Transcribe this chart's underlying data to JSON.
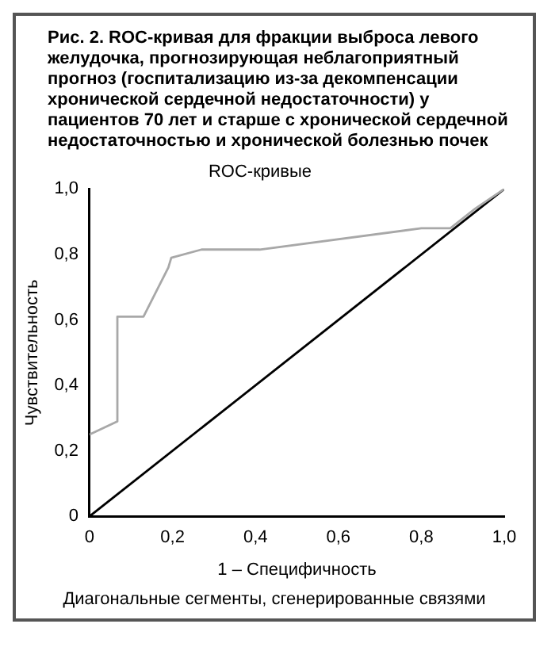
{
  "chart_data": {
    "type": "line",
    "title": "Рис. 2. ROC-кривая для фракции выброса левого желудочка, прогнозирующая неблагоприятный прогноз (госпитализацию из-за декомпенсации хронической сердечной недостаточности) у пациентов 70 лет и старше с хронической сердечной недостаточностью и хронической болезнью почек",
    "subtitle": "ROC-кривые",
    "xlabel": "1 – Специфичность",
    "ylabel": "Чувствительность",
    "annotations": [
      "Диагональные сегменты, сгенерированные связями"
    ],
    "series": [
      {
        "color": "#a8a8a8",
        "x": [
          0,
          0.067,
          0.067,
          0.13,
          0.19,
          0.197,
          0.27,
          0.41,
          0.8,
          0.87,
          0.93,
          1
        ],
        "values": [
          0.25,
          0.29,
          0.61,
          0.61,
          0.76,
          0.79,
          0.815,
          0.815,
          0.88,
          0.88,
          0.94,
          1
        ]
      },
      {
        "color": "#000000",
        "x": [
          0,
          1
        ],
        "values": [
          0,
          1
        ]
      }
    ],
    "xlim": [
      0,
      1
    ],
    "ylim": [
      0,
      1
    ],
    "xticks": [
      0,
      {
        "value": 0.2,
        "label": "0,2"
      },
      {
        "value": 0.4,
        "label": "0,4"
      },
      {
        "value": 0.6,
        "label": "0,6"
      },
      {
        "value": 0.8,
        "label": "0,8"
      },
      {
        "value": 1,
        "label": "1,0"
      }
    ],
    "yticks": [
      0,
      {
        "value": 0.2,
        "label": "0,2"
      },
      {
        "value": 0.4,
        "label": "0,4"
      },
      {
        "value": 0.6,
        "label": "0,6"
      },
      {
        "value": 0.8,
        "label": "0,8"
      },
      {
        "value": 1,
        "label": "1,0"
      }
    ],
    "grid": false,
    "legend": false,
    "marker": "none",
    "line_style": "solid"
  }
}
